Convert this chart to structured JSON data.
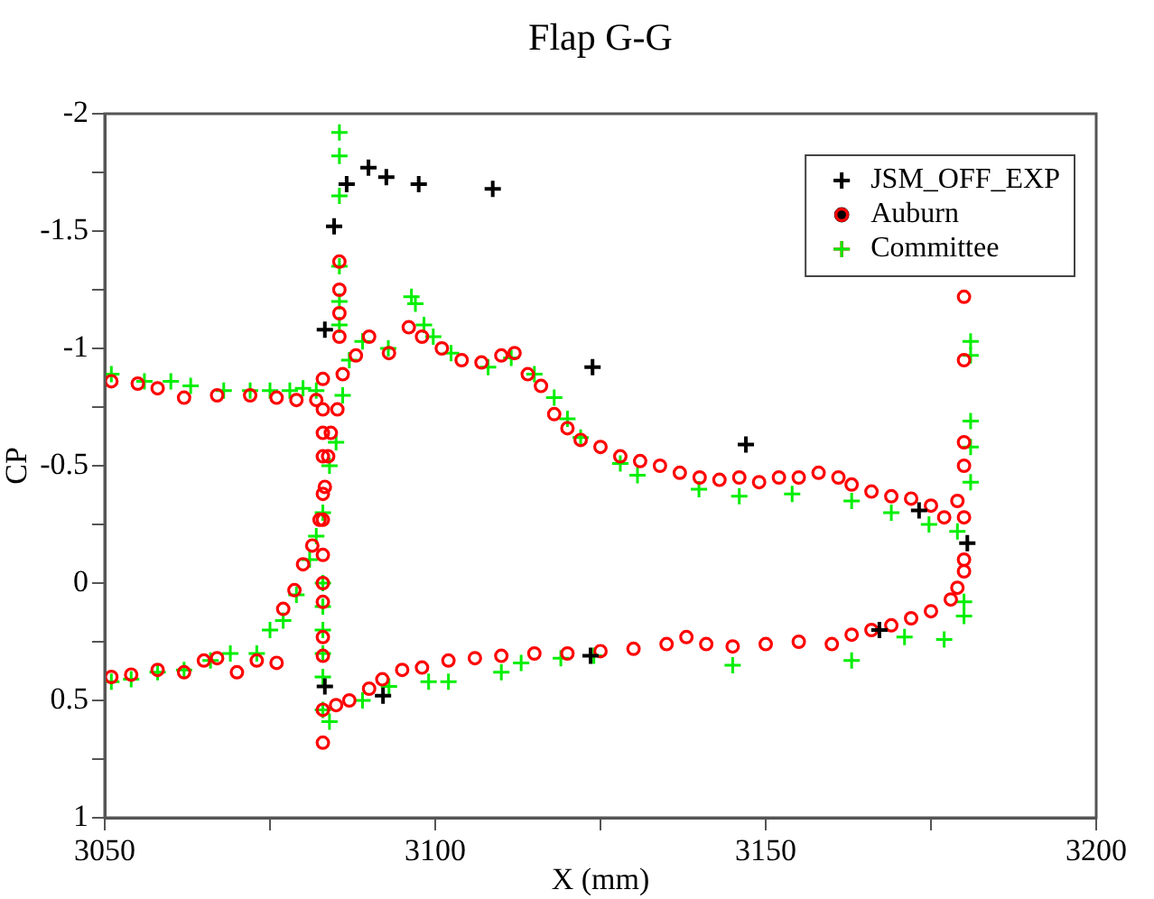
{
  "chart_data": {
    "type": "scatter",
    "title": "Flap G-G",
    "xlabel": "X (mm)",
    "ylabel": "CP",
    "xlim": [
      3050,
      3200
    ],
    "xticks": [
      3050,
      {
        "value": 3075,
        "label": null
      },
      3100,
      {
        "value": 3125,
        "label": null
      },
      3150,
      {
        "value": 3175,
        "label": null
      },
      3200
    ],
    "ylim": [
      1,
      -2
    ],
    "yticks": [
      -2,
      {
        "value": -1.75,
        "label": null
      },
      -1.5,
      {
        "value": -1.25,
        "label": null
      },
      -1,
      {
        "value": -0.75,
        "label": null
      },
      -0.5,
      {
        "value": -0.25,
        "label": null
      },
      0,
      {
        "value": 0.25,
        "label": null
      },
      0.5,
      {
        "value": 0.75,
        "label": null
      },
      1
    ],
    "grid": false,
    "legend": "top right",
    "series": [
      {
        "name": "JSM_OFF_EXP",
        "color": "#000000",
        "marker": "cross",
        "x": [
          3083.3,
          3084.7,
          3086.6,
          3089.9,
          3092.6,
          3097.5,
          3108.7,
          3123.8,
          3147.0,
          3173.2,
          3180.5,
          3167.2,
          3123.5,
          3092.1,
          3083.3
        ],
        "values": [
          -1.08,
          -1.52,
          -1.7,
          -1.77,
          -1.73,
          -1.7,
          -1.68,
          -0.92,
          -0.59,
          -0.31,
          -0.17,
          0.2,
          0.31,
          0.48,
          0.44
        ]
      },
      {
        "name": "Auburn",
        "color": "#ff0000",
        "marker": "circle",
        "x": [
          3051,
          3055,
          3058,
          3062,
          3067,
          3072,
          3076,
          3079,
          3082,
          3051,
          3054,
          3058,
          3062,
          3065,
          3067,
          3070,
          3073,
          3076,
          3077,
          3078.7,
          3080,
          3081.4,
          3082.5,
          3083.3,
          3083.8,
          3084.2,
          3085.2,
          3086,
          3088,
          3083,
          3083,
          3083,
          3083,
          3083,
          3083,
          3083,
          3083,
          3083,
          3083,
          3083,
          3083,
          3083,
          3085.5,
          3085.5,
          3085.5,
          3085.5,
          3090,
          3093,
          3096,
          3098,
          3101,
          3104,
          3107,
          3110,
          3112,
          3114,
          3116,
          3118,
          3120,
          3122,
          3125,
          3128,
          3131,
          3134,
          3137,
          3140,
          3143,
          3146,
          3149,
          3152,
          3155,
          3158,
          3161,
          3163,
          3166,
          3169,
          3172,
          3175,
          3177,
          3179,
          3180,
          3180,
          3180,
          3180,
          3180,
          3085,
          3087,
          3090,
          3092,
          3095,
          3098,
          3102,
          3106,
          3110,
          3115,
          3120,
          3125,
          3130,
          3135,
          3138,
          3141,
          3145,
          3150,
          3155,
          3160,
          3163,
          3166,
          3169,
          3172,
          3175,
          3178,
          3179,
          3180,
          3180
        ],
        "values": [
          -0.86,
          -0.85,
          -0.83,
          -0.79,
          -0.8,
          -0.8,
          -0.79,
          -0.78,
          -0.78,
          0.4,
          0.39,
          0.37,
          0.38,
          0.33,
          0.32,
          0.38,
          0.33,
          0.34,
          0.11,
          0.03,
          -0.08,
          -0.16,
          -0.27,
          -0.41,
          -0.54,
          -0.64,
          -0.74,
          -0.89,
          -0.97,
          0.68,
          0.54,
          0.31,
          0.23,
          0.08,
          0.0,
          -0.12,
          -0.27,
          -0.38,
          -0.54,
          -0.64,
          -0.74,
          -0.87,
          -1.05,
          -1.15,
          -1.25,
          -1.37,
          -1.05,
          -0.98,
          -1.09,
          -1.05,
          -1.0,
          -0.95,
          -0.94,
          -0.97,
          -0.98,
          -0.89,
          -0.84,
          -0.72,
          -0.66,
          -0.61,
          -0.58,
          -0.54,
          -0.52,
          -0.5,
          -0.47,
          -0.45,
          -0.44,
          -0.45,
          -0.43,
          -0.45,
          -0.45,
          -0.47,
          -0.45,
          -0.42,
          -0.39,
          -0.37,
          -0.36,
          -0.33,
          -0.28,
          -0.35,
          -0.5,
          -0.6,
          -0.95,
          -1.22,
          -0.28,
          0.52,
          0.5,
          0.45,
          0.41,
          0.37,
          0.36,
          0.33,
          0.32,
          0.31,
          0.3,
          0.3,
          0.29,
          0.28,
          0.26,
          0.23,
          0.26,
          0.27,
          0.26,
          0.25,
          0.26,
          0.22,
          0.2,
          0.18,
          0.15,
          0.12,
          0.07,
          0.02,
          -0.05,
          -0.1
        ]
      },
      {
        "name": "Committee",
        "color": "#00ee00",
        "marker": "cross",
        "x": [
          3051,
          3056,
          3060,
          3063,
          3068,
          3072,
          3075,
          3078,
          3080,
          3082,
          3051,
          3054,
          3058,
          3062,
          3066,
          3069,
          3073,
          3075,
          3077,
          3079,
          3081,
          3082,
          3083,
          3084,
          3085,
          3086,
          3087,
          3085.5,
          3085.5,
          3085.5,
          3085.5,
          3085.5,
          3085.5,
          3083,
          3083,
          3083,
          3083,
          3083,
          3089,
          3092.9,
          3096.4,
          3097,
          3098.3,
          3099.7,
          3102.4,
          3108,
          3111.5,
          3115,
          3118,
          3120,
          3122,
          3128,
          3130.6,
          3139.9,
          3146,
          3154,
          3163,
          3169,
          3174.7,
          3179,
          3181,
          3181,
          3181,
          3181,
          3181,
          3083,
          3084,
          3089,
          3093,
          3099,
          3102,
          3110,
          3113,
          3119,
          3124,
          3145,
          3163,
          3171,
          3177,
          3180,
          3180
        ],
        "values": [
          -0.89,
          -0.86,
          -0.86,
          -0.84,
          -0.82,
          -0.82,
          -0.82,
          -0.82,
          -0.83,
          -0.82,
          0.42,
          0.41,
          0.38,
          0.37,
          0.33,
          0.3,
          0.3,
          0.2,
          0.16,
          0.05,
          -0.1,
          -0.2,
          -0.3,
          -0.5,
          -0.6,
          -0.8,
          -0.95,
          -1.1,
          -1.2,
          -1.35,
          -1.65,
          -1.82,
          -1.92,
          0.4,
          0.3,
          0.2,
          0.1,
          0.0,
          -1.03,
          -1.0,
          -1.22,
          -1.19,
          -1.1,
          -1.05,
          -0.98,
          -0.92,
          -0.96,
          -0.89,
          -0.79,
          -0.7,
          -0.62,
          -0.51,
          -0.46,
          -0.4,
          -0.37,
          -0.38,
          -0.35,
          -0.3,
          -0.25,
          -0.22,
          -1.03,
          -0.97,
          -0.69,
          -0.58,
          -0.43,
          0.54,
          0.59,
          0.5,
          0.44,
          0.42,
          0.42,
          0.38,
          0.34,
          0.32,
          0.31,
          0.35,
          0.33,
          0.23,
          0.24,
          0.14,
          0.08
        ]
      }
    ]
  }
}
